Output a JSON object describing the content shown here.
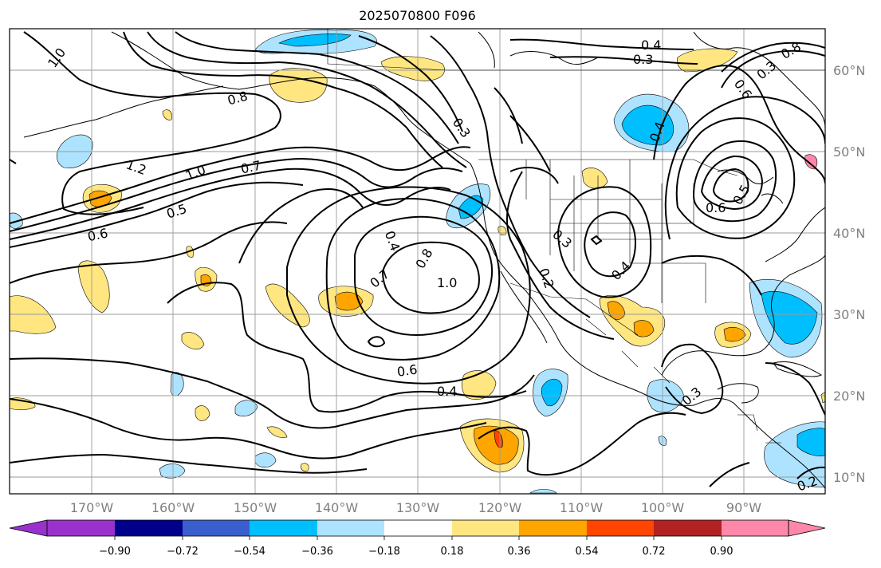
{
  "title": "2025070800 F096",
  "latitude_labels": [
    "60°N",
    "50°N",
    "40°N",
    "30°N",
    "20°N",
    "10°N"
  ],
  "longitude_labels": [
    "170°W",
    "160°W",
    "150°W",
    "140°W",
    "130°W",
    "120°W",
    "110°W",
    "100°W",
    "90°W"
  ],
  "colorbar": {
    "tick_labels": [
      "−0.90",
      "−0.72",
      "−0.54",
      "−0.36",
      "−0.18",
      "0.18",
      "0.36",
      "0.54",
      "0.72",
      "0.90"
    ],
    "colors": [
      "#9932cc",
      "#00008b",
      "#3a5fcd",
      "#00bfff",
      "#aee3ff",
      "#ffffff",
      "#ffe680",
      "#ffa500",
      "#ff4500",
      "#b22222",
      "#ff88aa"
    ]
  },
  "contour_labels": [
    "1.0",
    "0.8",
    "1.2",
    "1.0",
    "0.7",
    "0.5",
    "0.6",
    "0.4",
    "0.7",
    "0.8",
    "1.0",
    "0.6",
    "0.4",
    "0.4",
    "0.3",
    "0.3",
    "0.4",
    "0.2",
    "0.3",
    "0.4",
    "0.3",
    "0.6",
    "0.5",
    "0.8",
    "0.6",
    "0.3",
    "0.2"
  ]
}
